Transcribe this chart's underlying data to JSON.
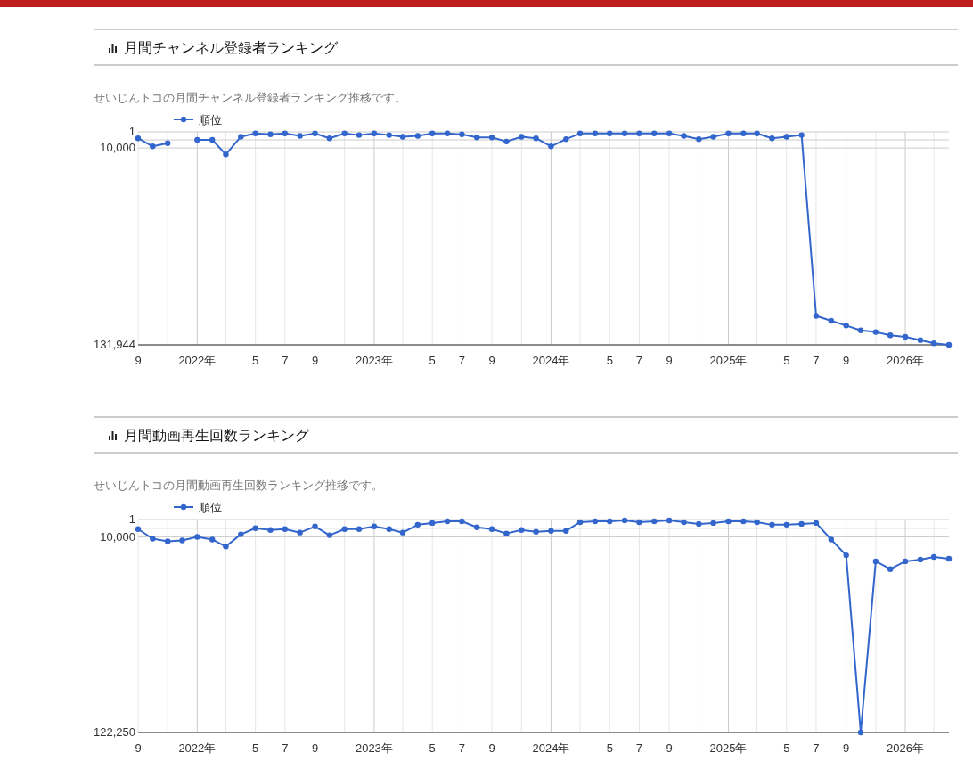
{
  "chart_data": [
    {
      "type": "line",
      "title": "月間チャンネル登録者ランキング",
      "subtitle": "せいじんトコの月間チャンネル登録者ランキング推移です。",
      "x": [
        "2021-09",
        "2021-10",
        "2021-11",
        "2021-12",
        "2022-01",
        "2022-02",
        "2022-03",
        "2022-04",
        "2022-05",
        "2022-06",
        "2022-07",
        "2022-08",
        "2022-09",
        "2022-10",
        "2022-11",
        "2022-12",
        "2023-01",
        "2023-02",
        "2023-03",
        "2023-04",
        "2023-05",
        "2023-06",
        "2023-07",
        "2023-08",
        "2023-09",
        "2023-10",
        "2023-11",
        "2023-12",
        "2024-01",
        "2024-02",
        "2024-03",
        "2024-04",
        "2024-05",
        "2024-06",
        "2024-07",
        "2024-08",
        "2024-09",
        "2024-10",
        "2024-11",
        "2024-12",
        "2025-01",
        "2025-02",
        "2025-03",
        "2025-04",
        "2025-05",
        "2025-06",
        "2025-07",
        "2025-08",
        "2025-09",
        "2025-10",
        "2025-11",
        "2025-12",
        "2026-01",
        "2026-02",
        "2026-03",
        "2026-04"
      ],
      "series": [
        {
          "name": "順位",
          "color": "#3366cc",
          "values": [
            4000,
            9000,
            7000,
            null,
            5000,
            5000,
            14000,
            3000,
            1000,
            1500,
            1000,
            2500,
            1000,
            4000,
            1000,
            2000,
            1000,
            2000,
            3000,
            2500,
            1000,
            1000,
            1500,
            3500,
            3500,
            6000,
            3000,
            4000,
            9000,
            4500,
            1000,
            1000,
            1000,
            1000,
            1000,
            1000,
            1000,
            2500,
            4500,
            3000,
            1000,
            1000,
            1000,
            4000,
            3000,
            2000,
            114000,
            117000,
            120000,
            123000,
            124000,
            126000,
            127000,
            129000,
            131000,
            131944
          ]
        }
      ],
      "xlim": [
        "2021-09",
        "2026-04"
      ],
      "xticks": [
        {
          "value": "2021-09",
          "label": "9"
        },
        {
          "value": "2021-11",
          "label": null
        },
        {
          "value": "2022-01",
          "label": "2022年"
        },
        {
          "value": "2022-03",
          "label": null
        },
        {
          "value": "2022-05",
          "label": "5"
        },
        {
          "value": "2022-07",
          "label": "7"
        },
        {
          "value": "2022-09",
          "label": "9"
        },
        {
          "value": "2022-11",
          "label": null
        },
        {
          "value": "2023-01",
          "label": "2023年"
        },
        {
          "value": "2023-03",
          "label": null
        },
        {
          "value": "2023-05",
          "label": "5"
        },
        {
          "value": "2023-07",
          "label": "7"
        },
        {
          "value": "2023-09",
          "label": "9"
        },
        {
          "value": "2023-11",
          "label": null
        },
        {
          "value": "2024-01",
          "label": "2024年"
        },
        {
          "value": "2024-03",
          "label": null
        },
        {
          "value": "2024-05",
          "label": "5"
        },
        {
          "value": "2024-07",
          "label": "7"
        },
        {
          "value": "2024-09",
          "label": "9"
        },
        {
          "value": "2024-11",
          "label": null
        },
        {
          "value": "2025-01",
          "label": "2025年"
        },
        {
          "value": "2025-03",
          "label": null
        },
        {
          "value": "2025-05",
          "label": "5"
        },
        {
          "value": "2025-07",
          "label": "7"
        },
        {
          "value": "2025-09",
          "label": "9"
        },
        {
          "value": "2025-11",
          "label": null
        },
        {
          "value": "2026-01",
          "label": "2026年"
        },
        {
          "value": "2026-03",
          "label": null
        }
      ],
      "ylim": [
        131944,
        1
      ],
      "yticks": [
        {
          "value": 1,
          "label": "1"
        },
        {
          "value": 5000,
          "label": null
        },
        {
          "value": 10000,
          "label": "10,000"
        },
        {
          "value": 131944,
          "label": "131,944"
        }
      ],
      "grid": true,
      "legend": "top left",
      "marker": "circle",
      "line_style": "solid"
    },
    {
      "type": "line",
      "title": "月間動画再生回数ランキング",
      "subtitle": "せいじんトコの月間動画再生回数ランキング推移です。",
      "x": [
        "2021-09",
        "2021-10",
        "2021-11",
        "2021-12",
        "2022-01",
        "2022-02",
        "2022-03",
        "2022-04",
        "2022-05",
        "2022-06",
        "2022-07",
        "2022-08",
        "2022-09",
        "2022-10",
        "2022-11",
        "2022-12",
        "2023-01",
        "2023-02",
        "2023-03",
        "2023-04",
        "2023-05",
        "2023-06",
        "2023-07",
        "2023-08",
        "2023-09",
        "2023-10",
        "2023-11",
        "2023-12",
        "2024-01",
        "2024-02",
        "2024-03",
        "2024-04",
        "2024-05",
        "2024-06",
        "2024-07",
        "2024-08",
        "2024-09",
        "2024-10",
        "2024-11",
        "2024-12",
        "2025-01",
        "2025-02",
        "2025-03",
        "2025-04",
        "2025-05",
        "2025-06",
        "2025-07",
        "2025-08",
        "2025-09",
        "2025-10",
        "2025-11",
        "2025-12",
        "2026-01",
        "2026-02",
        "2026-03",
        "2026-04"
      ],
      "series": [
        {
          "name": "順位",
          "color": "#3366cc",
          "values": [
            5500,
            11000,
            12500,
            12000,
            10000,
            11500,
            15500,
            8500,
            5000,
            6000,
            5500,
            7500,
            4000,
            9000,
            5500,
            5500,
            4000,
            5500,
            7500,
            3000,
            2000,
            1000,
            1000,
            4500,
            5500,
            8000,
            6000,
            7000,
            6500,
            6500,
            1500,
            1000,
            1000,
            500,
            1500,
            1000,
            500,
            1500,
            2500,
            2000,
            1000,
            1000,
            1500,
            3000,
            3000,
            2500,
            2000,
            11500,
            20500,
            122250,
            24000,
            28500,
            24000,
            23000,
            21500,
            22500
          ]
        }
      ],
      "xlim": [
        "2021-09",
        "2026-04"
      ],
      "xticks": [
        {
          "value": "2021-09",
          "label": "9"
        },
        {
          "value": "2021-11",
          "label": null
        },
        {
          "value": "2022-01",
          "label": "2022年"
        },
        {
          "value": "2022-03",
          "label": null
        },
        {
          "value": "2022-05",
          "label": "5"
        },
        {
          "value": "2022-07",
          "label": "7"
        },
        {
          "value": "2022-09",
          "label": "9"
        },
        {
          "value": "2022-11",
          "label": null
        },
        {
          "value": "2023-01",
          "label": "2023年"
        },
        {
          "value": "2023-03",
          "label": null
        },
        {
          "value": "2023-05",
          "label": "5"
        },
        {
          "value": "2023-07",
          "label": "7"
        },
        {
          "value": "2023-09",
          "label": "9"
        },
        {
          "value": "2023-11",
          "label": null
        },
        {
          "value": "2024-01",
          "label": "2024年"
        },
        {
          "value": "2024-03",
          "label": null
        },
        {
          "value": "2024-05",
          "label": "5"
        },
        {
          "value": "2024-07",
          "label": "7"
        },
        {
          "value": "2024-09",
          "label": "9"
        },
        {
          "value": "2024-11",
          "label": null
        },
        {
          "value": "2025-01",
          "label": "2025年"
        },
        {
          "value": "2025-03",
          "label": null
        },
        {
          "value": "2025-05",
          "label": "5"
        },
        {
          "value": "2025-07",
          "label": "7"
        },
        {
          "value": "2025-09",
          "label": "9"
        },
        {
          "value": "2025-11",
          "label": null
        },
        {
          "value": "2026-01",
          "label": "2026年"
        },
        {
          "value": "2026-03",
          "label": null
        }
      ],
      "ylim": [
        122250,
        1
      ],
      "yticks": [
        {
          "value": 1,
          "label": "1"
        },
        {
          "value": 5000,
          "label": null
        },
        {
          "value": 10000,
          "label": "10,000"
        },
        {
          "value": 122250,
          "label": "122,250"
        }
      ],
      "grid": true,
      "legend": "top left",
      "marker": "circle",
      "line_style": "solid"
    }
  ]
}
